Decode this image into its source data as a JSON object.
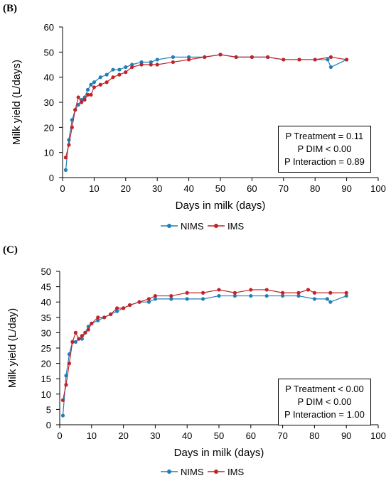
{
  "chart_data": [
    {
      "panel_label": "(B)",
      "type": "line",
      "xlabel": "Days in milk (days)",
      "ylabel": "Milk yield (L/days)",
      "xlim": [
        0,
        100
      ],
      "ylim": [
        0,
        60
      ],
      "xticks": [
        "0",
        "10",
        "20",
        "30",
        "40",
        "50",
        "60",
        "70",
        "80",
        "90",
        "100"
      ],
      "yticks": [
        "0",
        "10",
        "20",
        "30",
        "40",
        "50",
        "60"
      ],
      "grid": false,
      "legend_position": "bottom-center",
      "stats": [
        "P Treatment = 0.11",
        "P DIM < 0.00",
        "P Interaction = 0.89"
      ],
      "series": [
        {
          "name": "NIMS",
          "color": "#1f7fb8",
          "x": [
            1,
            2,
            3,
            4,
            5,
            6,
            7,
            8,
            9,
            10,
            12,
            14,
            16,
            18,
            20,
            22,
            25,
            28,
            30,
            35,
            40,
            45,
            50,
            55,
            60,
            65,
            70,
            75,
            80,
            84,
            85,
            90
          ],
          "y": [
            3,
            15,
            23,
            27,
            29,
            31,
            32,
            35,
            37,
            38,
            40,
            41,
            43,
            43,
            44,
            45,
            46,
            46,
            47,
            48,
            48,
            48,
            49,
            48,
            48,
            48,
            47,
            47,
            47,
            47,
            44,
            47
          ]
        },
        {
          "name": "IMS",
          "color": "#c0242a",
          "x": [
            1,
            2,
            3,
            4,
            5,
            6,
            7,
            8,
            9,
            10,
            12,
            14,
            16,
            18,
            20,
            22,
            25,
            28,
            30,
            35,
            40,
            45,
            50,
            55,
            60,
            65,
            70,
            75,
            80,
            85,
            90
          ],
          "y": [
            8,
            13,
            20,
            27,
            32,
            30,
            31,
            33,
            33,
            36,
            37,
            38,
            40,
            41,
            42,
            44,
            45,
            45,
            45,
            46,
            47,
            48,
            49,
            48,
            48,
            48,
            47,
            47,
            47,
            48,
            47
          ]
        }
      ]
    },
    {
      "panel_label": "(C)",
      "type": "line",
      "xlabel": "Days in milk (days)",
      "ylabel": "Milk yield (L/day)",
      "xlim": [
        0,
        100
      ],
      "ylim": [
        0,
        50
      ],
      "xticks": [
        "0",
        "10",
        "20",
        "30",
        "40",
        "50",
        "60",
        "70",
        "80",
        "90",
        "100"
      ],
      "yticks": [
        "0",
        "5",
        "10",
        "15",
        "20",
        "25",
        "30",
        "35",
        "40",
        "45",
        "50"
      ],
      "grid": false,
      "legend_position": "bottom-center",
      "stats": [
        "P Treatment < 0.00",
        "P DIM < 0.00",
        "P Interaction = 1.00"
      ],
      "series": [
        {
          "name": "NIMS",
          "color": "#1f7fb8",
          "x": [
            1,
            2,
            3,
            4,
            5,
            6,
            7,
            8,
            9,
            10,
            12,
            14,
            16,
            18,
            20,
            22,
            25,
            28,
            30,
            35,
            40,
            45,
            50,
            55,
            60,
            65,
            70,
            75,
            80,
            84,
            85,
            90
          ],
          "y": [
            3,
            16,
            23,
            27,
            27,
            28,
            28,
            30,
            32,
            33,
            34,
            35,
            36,
            37,
            38,
            39,
            40,
            40,
            41,
            41,
            41,
            41,
            42,
            42,
            42,
            42,
            42,
            42,
            41,
            41,
            40,
            42
          ]
        },
        {
          "name": "IMS",
          "color": "#c0242a",
          "x": [
            1,
            2,
            3,
            4,
            5,
            6,
            7,
            8,
            9,
            10,
            12,
            14,
            16,
            18,
            20,
            22,
            25,
            28,
            30,
            35,
            40,
            45,
            50,
            55,
            60,
            65,
            70,
            75,
            78,
            80,
            85,
            90
          ],
          "y": [
            8,
            13,
            20,
            27,
            30,
            28,
            29,
            30,
            31,
            33,
            35,
            35,
            36,
            38,
            38,
            39,
            40,
            41,
            42,
            42,
            43,
            43,
            44,
            43,
            44,
            44,
            43,
            43,
            44,
            43,
            43,
            43
          ]
        }
      ]
    }
  ]
}
